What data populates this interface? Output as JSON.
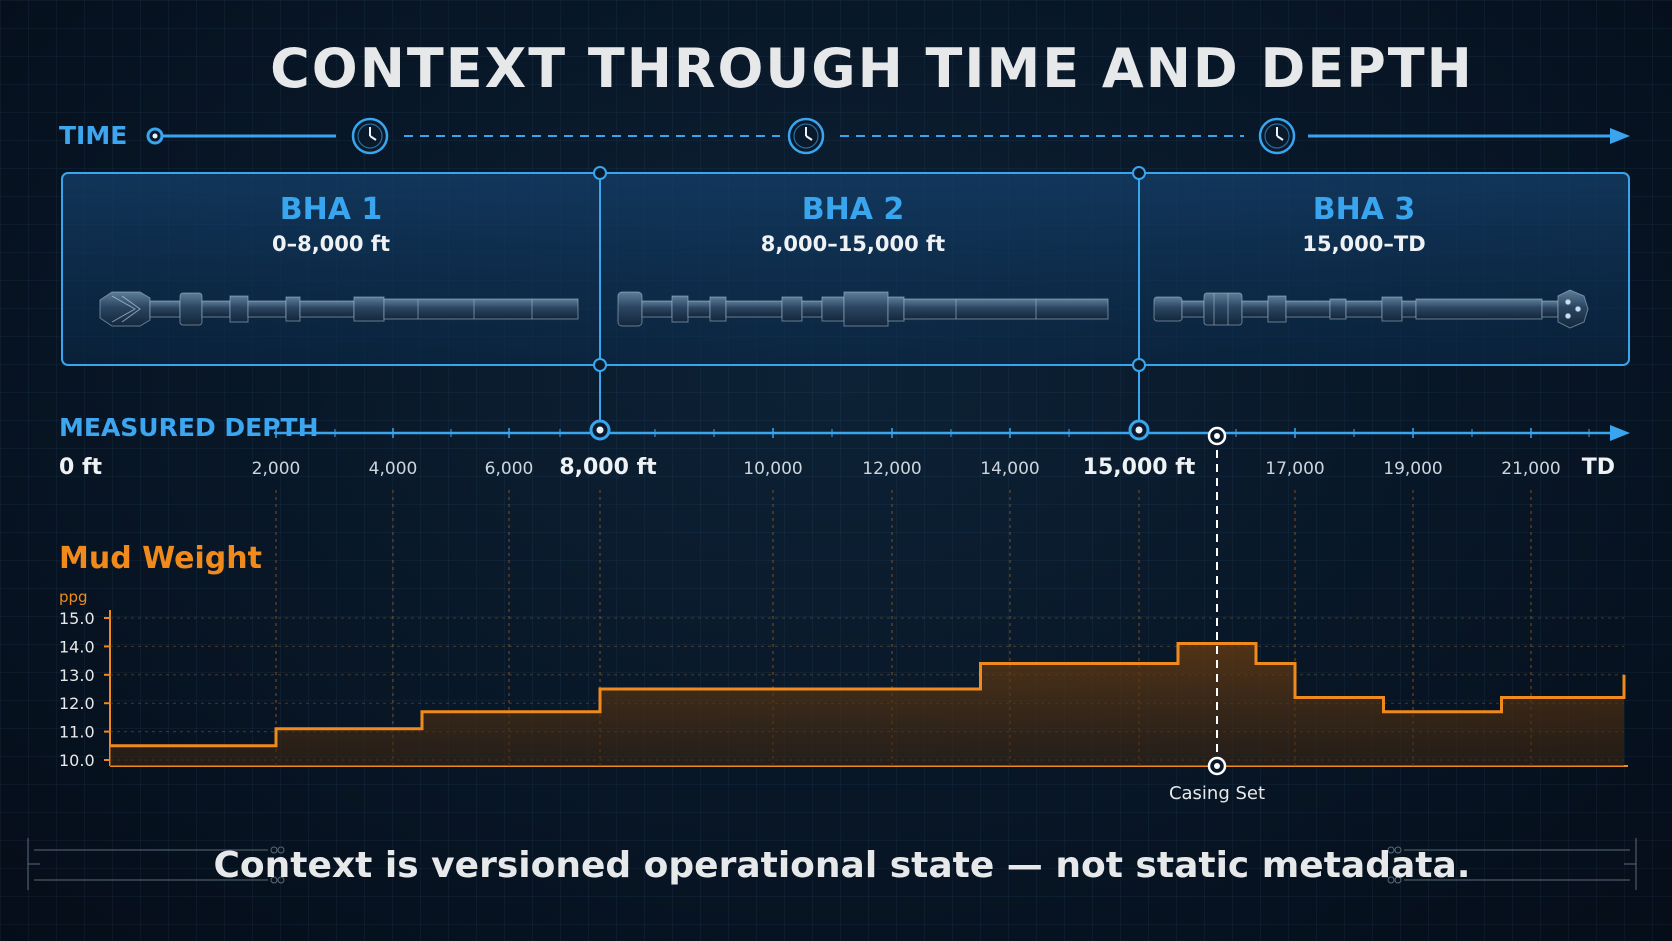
{
  "title": "CONTEXT THROUGH TIME AND DEPTH",
  "time_label": "TIME",
  "bhas": [
    {
      "name": "BHA 1",
      "range": "0–8,000 ft"
    },
    {
      "name": "BHA 2",
      "range": "8,000–15,000 ft"
    },
    {
      "name": "BHA 3",
      "range": "15,000–TD"
    }
  ],
  "depth_label": "MEASURED DEPTH",
  "depth_ticks": [
    {
      "text": "0 ft",
      "major": true
    },
    {
      "text": "2,000",
      "major": false
    },
    {
      "text": "4,000",
      "major": false
    },
    {
      "text": "6,000",
      "major": false
    },
    {
      "text": "8,000 ft",
      "major": true
    },
    {
      "text": "10,000",
      "major": false
    },
    {
      "text": "12,000",
      "major": false
    },
    {
      "text": "14,000",
      "major": false
    },
    {
      "text": "15,000 ft",
      "major": true
    },
    {
      "text": "17,000",
      "major": false
    },
    {
      "text": "19,000",
      "major": false
    },
    {
      "text": "21,000",
      "major": false
    },
    {
      "text": "TD",
      "major": true
    }
  ],
  "mud_weight_title": "Mud Weight",
  "ppg_label": "ppg",
  "casing_label": "Casing Set",
  "casing_depth_ft": 16000,
  "footer_text": "Context is versioned operational state — not static metadata.",
  "colors": {
    "accent_blue": "#3aa5ef",
    "mud_orange": "#f08a1c"
  },
  "chart_data": {
    "type": "line",
    "xlabel": "",
    "ylabel": "ppg",
    "ylim": [
      10.0,
      15.0
    ],
    "yticks": [
      "10.0",
      "11.0",
      "12.0",
      "13.0",
      "14.0",
      "15.0"
    ],
    "series": [
      {
        "step": true,
        "x": [
          0,
          2000,
          4500,
          8000,
          13500,
          15500,
          16500,
          17000,
          18500,
          20500,
          22700
        ],
        "y": [
          10.5,
          11.1,
          11.7,
          12.5,
          13.4,
          14.1,
          13.4,
          12.2,
          11.7,
          12.2,
          13.0
        ]
      }
    ]
  }
}
